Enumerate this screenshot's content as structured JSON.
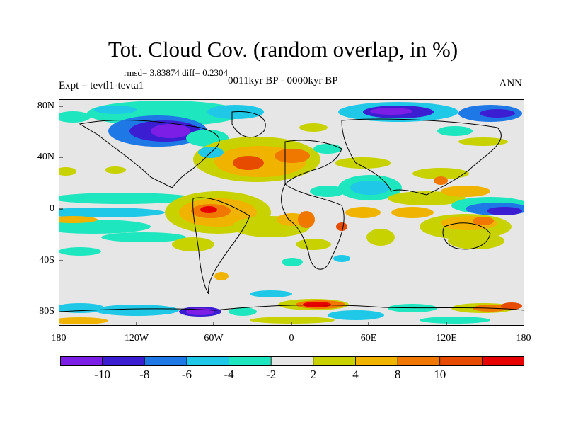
{
  "title": "Tot. Cloud Cov. (random overlap, in %)",
  "stats": "rmsd= 3.83874 diff= 0.2304",
  "period": "0011kyr BP - 0000kyr BP",
  "experiment": "Expt = tevtl1-tevta1",
  "season": "ANN",
  "lat_labels": [
    "80N",
    "40N",
    "0",
    "40S",
    "80S"
  ],
  "lon_labels": [
    "180",
    "120W",
    "60W",
    "0",
    "60E",
    "120E",
    "180"
  ],
  "colorbar": {
    "labels": [
      "-10",
      "-8",
      "-6",
      "-4",
      "-2",
      "2",
      "4",
      "8",
      "10"
    ],
    "colors": [
      "#7d1ee6",
      "#3c1ed2",
      "#1e78e6",
      "#1ec8e6",
      "#1ee6be",
      "#e6e6e6",
      "#c8d200",
      "#f0b400",
      "#f07800",
      "#e64b00",
      "#e60000"
    ]
  },
  "colors": {
    "land_outline": "#000000",
    "background": "#e6e6e6",
    "frame": "#000000"
  }
}
